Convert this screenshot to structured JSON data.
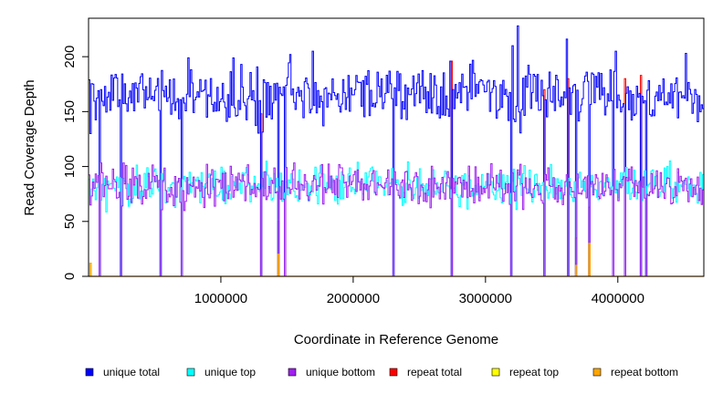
{
  "chart_data": {
    "type": "line",
    "xlabel": "Coordinate in Reference Genome",
    "ylabel": "Read Coverage Depth",
    "xlim": [
      0,
      4650000
    ],
    "ylim": [
      0,
      235
    ],
    "x_ticks": [
      {
        "value": 1000000,
        "label": "1000000"
      },
      {
        "value": 2000000,
        "label": "2000000"
      },
      {
        "value": 3000000,
        "label": "3000000"
      },
      {
        "value": 4000000,
        "label": "4000000"
      }
    ],
    "y_ticks": [
      {
        "value": 0,
        "label": "0"
      },
      {
        "value": 50,
        "label": "50"
      },
      {
        "value": 100,
        "label": "100"
      },
      {
        "value": 150,
        "label": "150"
      },
      {
        "value": 200,
        "label": "200"
      }
    ],
    "grid": false,
    "legend_position": "bottom",
    "legend": [
      {
        "name": "unique total",
        "color": "#0000ff"
      },
      {
        "name": "unique top",
        "color": "#00ffff"
      },
      {
        "name": "unique bottom",
        "color": "#a020f0"
      },
      {
        "name": "repeat total",
        "color": "#ff0000"
      },
      {
        "name": "repeat top",
        "color": "#ffff00"
      },
      {
        "name": "repeat bottom",
        "color": "#ffa500"
      }
    ],
    "bin_size": 10000,
    "means": {
      "unique_total": 165,
      "unique_top": 82,
      "unique_bottom": 83
    },
    "dropouts": [
      {
        "x": 10000,
        "unique_total": 130,
        "repeat_bottom": 12
      },
      {
        "x": 80000,
        "unique_total": 0
      },
      {
        "x": 240000,
        "unique_total": 0
      },
      {
        "x": 540000,
        "unique_total": 0
      },
      {
        "x": 700000,
        "unique_total": 0
      },
      {
        "x": 1300000,
        "unique_total": 0,
        "repeat_total": 148
      },
      {
        "x": 1430000,
        "unique_total": 0,
        "repeat_total": 50,
        "repeat_bottom": 20
      },
      {
        "x": 1480000,
        "unique_total": 0
      },
      {
        "x": 2300000,
        "unique_total": 0
      },
      {
        "x": 2740000,
        "unique_total": 0,
        "repeat_total": 196
      },
      {
        "x": 3190000,
        "unique_total": 0
      },
      {
        "x": 3440000,
        "unique_total": 0,
        "repeat_total": 170
      },
      {
        "x": 3620000,
        "unique_total": 0,
        "repeat_total": 180
      },
      {
        "x": 3680000,
        "unique_total": 0,
        "repeat_total": 35,
        "repeat_bottom": 10
      },
      {
        "x": 3780000,
        "unique_total": 0,
        "repeat_total": 63,
        "repeat_bottom": 30
      },
      {
        "x": 3960000,
        "unique_total": 0
      },
      {
        "x": 4050000,
        "unique_total": 0,
        "repeat_total": 180
      },
      {
        "x": 4170000,
        "unique_total": 0,
        "repeat_total": 183
      },
      {
        "x": 4210000,
        "unique_total": 0
      }
    ],
    "peaks": [
      {
        "x": 3240000,
        "unique_total": 228
      },
      {
        "x": 2730000,
        "unique_total": 196
      },
      {
        "x": 3610000,
        "unique_total": 216
      },
      {
        "x": 3200000,
        "unique_total": 210
      },
      {
        "x": 3980000,
        "unique_total": 205
      },
      {
        "x": 1690000,
        "unique_total": 205
      },
      {
        "x": 4510000,
        "unique_total": 203
      },
      {
        "x": 1520000,
        "unique_total": 202
      }
    ]
  }
}
